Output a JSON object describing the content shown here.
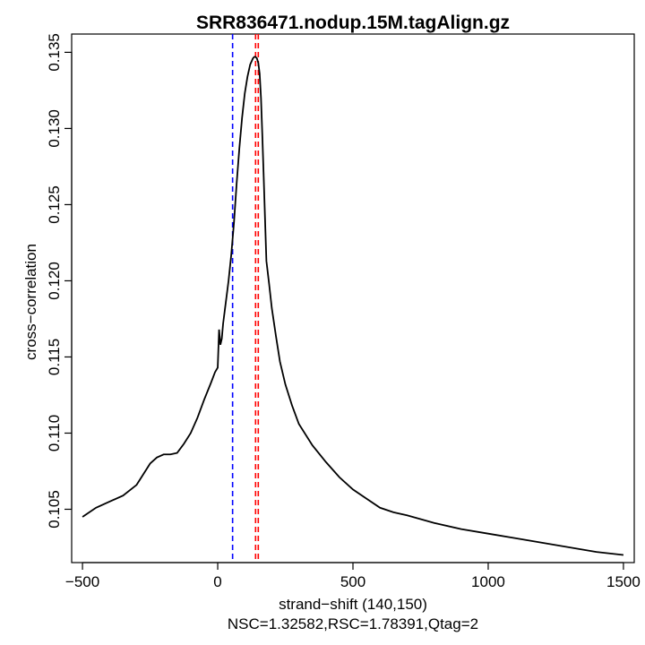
{
  "chart_data": {
    "type": "line",
    "title": "SRR836471.nodup.15M.tagAlign.gz",
    "xlabel": "strand−shift (140,150)",
    "subtitle": "NSC=1.32582,RSC=1.78391,Qtag=2",
    "ylabel": "cross−correlation",
    "xlim": [
      -540,
      1540
    ],
    "ylim": [
      0.1015,
      0.1362
    ],
    "x_ticks": [
      -500,
      0,
      500,
      1000,
      1500
    ],
    "x_tick_labels": [
      "−500",
      "0",
      "500",
      "1000",
      "1500"
    ],
    "y_ticks": [
      0.105,
      0.11,
      0.115,
      0.12,
      0.125,
      0.13,
      0.135
    ],
    "y_tick_labels": [
      "0.105",
      "0.110",
      "0.115",
      "0.120",
      "0.125",
      "0.130",
      "0.135"
    ],
    "vlines": [
      {
        "x": 55,
        "color": "#0000ff"
      },
      {
        "x": 140,
        "color": "#ff0000"
      },
      {
        "x": 150,
        "color": "#ff0000"
      }
    ],
    "series": [
      {
        "color": "#000000",
        "x": [
          -500,
          -450,
          -400,
          -350,
          -300,
          -275,
          -250,
          -225,
          -200,
          -175,
          -150,
          -125,
          -100,
          -75,
          -50,
          -25,
          -10,
          0,
          5,
          10,
          15,
          20,
          30,
          40,
          50,
          60,
          70,
          80,
          90,
          100,
          110,
          120,
          130,
          135,
          140,
          145,
          150,
          155,
          160,
          165,
          170,
          175,
          180,
          190,
          200,
          215,
          230,
          250,
          275,
          300,
          350,
          400,
          450,
          500,
          550,
          600,
          650,
          700,
          800,
          900,
          1000,
          1100,
          1200,
          1300,
          1400,
          1500
        ],
        "y": [
          0.1045,
          0.1051,
          0.1055,
          0.1059,
          0.1066,
          0.1073,
          0.108,
          0.1084,
          0.1086,
          0.1086,
          0.1087,
          0.1093,
          0.11,
          0.111,
          0.1122,
          0.1133,
          0.114,
          0.1143,
          0.1168,
          0.1158,
          0.1162,
          0.1172,
          0.1186,
          0.12,
          0.1217,
          0.1238,
          0.1264,
          0.1287,
          0.1307,
          0.1323,
          0.1334,
          0.1342,
          0.1346,
          0.1347,
          0.1347,
          0.1346,
          0.1343,
          0.1336,
          0.132,
          0.1295,
          0.1268,
          0.124,
          0.1213,
          0.1198,
          0.1182,
          0.1164,
          0.1147,
          0.1132,
          0.1118,
          0.1106,
          0.1092,
          0.1081,
          0.1071,
          0.1063,
          0.1057,
          0.1051,
          0.1048,
          0.1046,
          0.1041,
          0.1037,
          0.1034,
          0.1031,
          0.1028,
          0.1025,
          0.1022,
          0.102
        ]
      }
    ]
  }
}
